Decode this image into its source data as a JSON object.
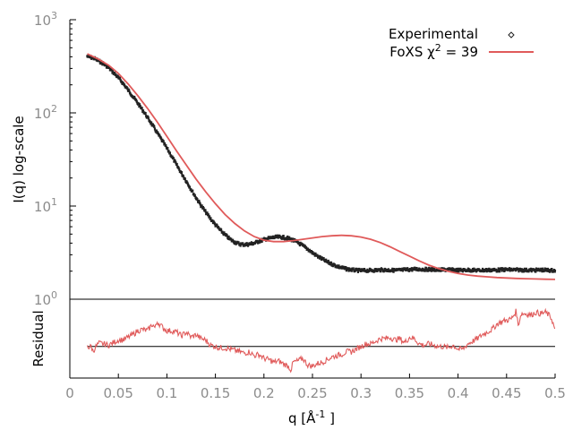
{
  "chart_data": {
    "type": "line",
    "xlabel": "q [Å⁻¹]",
    "xlabel_parts": {
      "main": "q [Å",
      "sup": "-1",
      "tail": " ]"
    },
    "xlim": [
      0,
      0.5
    ],
    "x_ticks": [
      0,
      0.05,
      0.1,
      0.15,
      0.2,
      0.25,
      0.3,
      0.35,
      0.4,
      0.45,
      0.5
    ],
    "x_tick_labels": [
      "0",
      "0.05",
      "0.1",
      "0.15",
      "0.2",
      "0.25",
      "0.3",
      "0.35",
      "0.4",
      "0.45",
      "0.5"
    ],
    "panels": [
      {
        "name": "main",
        "ylabel": "I(q) log-scale",
        "yscale": "log",
        "ylim": [
          1,
          1000
        ],
        "y_ticks": [
          {
            "value": 1,
            "base": "10",
            "exp": "0"
          },
          {
            "value": 10,
            "base": "10",
            "exp": "1"
          },
          {
            "value": 100,
            "base": "10",
            "exp": "2"
          },
          {
            "value": 1000,
            "base": "10",
            "exp": "3"
          }
        ],
        "legend_position": "top-right",
        "series": [
          {
            "name": "Experimental",
            "style": "points",
            "color": "#222222",
            "x": [
              0.018,
              0.025,
              0.03,
              0.035,
              0.04,
              0.045,
              0.05,
              0.055,
              0.06,
              0.065,
              0.07,
              0.075,
              0.08,
              0.085,
              0.09,
              0.095,
              0.1,
              0.105,
              0.11,
              0.115,
              0.12,
              0.125,
              0.13,
              0.135,
              0.14,
              0.145,
              0.15,
              0.155,
              0.16,
              0.165,
              0.17,
              0.175,
              0.18,
              0.185,
              0.19,
              0.195,
              0.2,
              0.205,
              0.21,
              0.215,
              0.22,
              0.225,
              0.23,
              0.235,
              0.24,
              0.245,
              0.25,
              0.255,
              0.26,
              0.265,
              0.27,
              0.275,
              0.28,
              0.285,
              0.29,
              0.295,
              0.3,
              0.305,
              0.31,
              0.315,
              0.32,
              0.325,
              0.33,
              0.335,
              0.34,
              0.345,
              0.35,
              0.355,
              0.36,
              0.365,
              0.37,
              0.375,
              0.38,
              0.385,
              0.39,
              0.395,
              0.4,
              0.405,
              0.41,
              0.415,
              0.42,
              0.425,
              0.43,
              0.435,
              0.44,
              0.445,
              0.45,
              0.455,
              0.46,
              0.465,
              0.47,
              0.475,
              0.48,
              0.485,
              0.49,
              0.495,
              0.5
            ],
            "y": [
              405,
              385,
              360,
              335,
              305,
              270,
              238,
              206,
              176,
              150,
              127,
              107,
              89,
              74,
              61,
              50.5,
              41.5,
              34,
              27.5,
              22.5,
              18.5,
              15,
              12.3,
              10.2,
              8.6,
              7.3,
              6.3,
              5.5,
              4.9,
              4.4,
              4.1,
              3.9,
              3.85,
              3.9,
              4.0,
              4.2,
              4.35,
              4.5,
              4.6,
              4.65,
              4.6,
              4.5,
              4.3,
              4.05,
              3.75,
              3.45,
              3.15,
              2.9,
              2.7,
              2.52,
              2.38,
              2.27,
              2.18,
              2.11,
              2.07,
              2.04,
              2.03,
              2.03,
              2.04,
              2.05,
              2.06,
              2.06,
              2.05,
              2.04,
              2.05,
              2.07,
              2.08,
              2.1,
              2.1,
              2.09,
              2.09,
              2.08,
              2.06,
              2.07,
              2.08,
              2.06,
              2.05,
              2.05,
              2.06,
              2.05,
              2.04,
              2.05,
              2.05,
              2.06,
              2.05,
              2.07,
              2.08,
              2.07,
              2.06,
              2.06,
              2.05,
              2.05,
              2.05,
              2.06,
              2.05,
              2.04,
              2.03
            ]
          },
          {
            "name": "FoXS χ² = 39",
            "legend_parts": {
              "main": "FoXS χ",
              "sup": "2",
              "tail": " = 39"
            },
            "style": "line",
            "color": "#e05a5a",
            "x": [
              0.018,
              0.03,
              0.04,
              0.05,
              0.06,
              0.07,
              0.08,
              0.09,
              0.1,
              0.11,
              0.12,
              0.13,
              0.14,
              0.15,
              0.16,
              0.17,
              0.18,
              0.19,
              0.2,
              0.21,
              0.22,
              0.23,
              0.24,
              0.25,
              0.26,
              0.27,
              0.28,
              0.29,
              0.3,
              0.31,
              0.32,
              0.33,
              0.34,
              0.35,
              0.36,
              0.37,
              0.38,
              0.39,
              0.4,
              0.41,
              0.42,
              0.43,
              0.44,
              0.45,
              0.46,
              0.47,
              0.48,
              0.49,
              0.5
            ],
            "y": [
              430,
              375,
              325,
              265,
              205,
              153,
              112,
              80,
              56,
              39,
              27.5,
              19.5,
              14.2,
              10.6,
              8.1,
              6.5,
              5.4,
              4.7,
              4.3,
              4.15,
              4.15,
              4.25,
              4.4,
              4.55,
              4.7,
              4.8,
              4.85,
              4.8,
              4.65,
              4.4,
              4.05,
              3.65,
              3.25,
              2.9,
              2.58,
              2.32,
              2.13,
              1.99,
              1.89,
              1.82,
              1.77,
              1.74,
              1.71,
              1.69,
              1.67,
              1.66,
              1.65,
              1.64,
              1.63
            ]
          }
        ]
      },
      {
        "name": "residual",
        "ylabel": "Residual",
        "series": [
          {
            "name": "",
            "style": "line",
            "color": "#e05a5a",
            "x": [
              0.018,
              0.02,
              0.022,
              0.024,
              0.026,
              0.028,
              0.03,
              0.035,
              0.04,
              0.045,
              0.05,
              0.055,
              0.06,
              0.065,
              0.07,
              0.075,
              0.08,
              0.085,
              0.088,
              0.09,
              0.095,
              0.1,
              0.105,
              0.11,
              0.115,
              0.12,
              0.125,
              0.13,
              0.135,
              0.14,
              0.145,
              0.15,
              0.155,
              0.16,
              0.165,
              0.17,
              0.175,
              0.18,
              0.185,
              0.19,
              0.195,
              0.2,
              0.205,
              0.21,
              0.215,
              0.22,
              0.225,
              0.228,
              0.23,
              0.235,
              0.24,
              0.245,
              0.25,
              0.255,
              0.26,
              0.265,
              0.27,
              0.275,
              0.28,
              0.285,
              0.29,
              0.295,
              0.3,
              0.305,
              0.31,
              0.315,
              0.32,
              0.325,
              0.33,
              0.335,
              0.34,
              0.345,
              0.35,
              0.355,
              0.36,
              0.365,
              0.37,
              0.375,
              0.38,
              0.385,
              0.39,
              0.395,
              0.4,
              0.405,
              0.41,
              0.415,
              0.42,
              0.425,
              0.43,
              0.435,
              0.44,
              0.445,
              0.45,
              0.455,
              0.46,
              0.462,
              0.465,
              0.47,
              0.475,
              0.48,
              0.485,
              0.49,
              0.495,
              0.497,
              0.5
            ],
            "y": [
              0.05,
              -0.05,
              0.02,
              -0.2,
              -0.05,
              0.05,
              0.12,
              0.1,
              0.05,
              0.15,
              0.25,
              0.25,
              0.35,
              0.45,
              0.6,
              0.65,
              0.6,
              0.85,
              0.7,
              0.95,
              0.75,
              0.6,
              0.6,
              0.55,
              0.4,
              0.55,
              0.35,
              0.45,
              0.3,
              0.25,
              0.05,
              0.0,
              -0.05,
              -0.05,
              -0.1,
              -0.15,
              -0.2,
              -0.25,
              -0.2,
              -0.35,
              -0.3,
              -0.45,
              -0.5,
              -0.6,
              -0.55,
              -0.65,
              -0.75,
              -0.9,
              -0.6,
              -0.55,
              -0.45,
              -0.7,
              -0.75,
              -0.65,
              -0.6,
              -0.5,
              -0.4,
              -0.35,
              -0.3,
              -0.2,
              -0.2,
              -0.1,
              0.0,
              0.1,
              0.1,
              0.2,
              0.3,
              0.3,
              0.35,
              0.25,
              0.3,
              0.15,
              0.35,
              0.3,
              0.1,
              0.05,
              0.1,
              0.05,
              0.0,
              0.0,
              -0.05,
              0.05,
              -0.1,
              -0.1,
              0.1,
              0.2,
              0.3,
              0.45,
              0.55,
              0.65,
              0.85,
              0.95,
              1.0,
              1.05,
              1.35,
              0.8,
              1.25,
              1.25,
              1.2,
              1.3,
              1.25,
              1.3,
              1.15,
              1.0,
              0.6
            ]
          },
          {
            "name": "",
            "style": "line",
            "color": "#000000",
            "x": [
              0.018,
              0.5
            ],
            "y": [
              0,
              0
            ]
          }
        ]
      }
    ]
  }
}
